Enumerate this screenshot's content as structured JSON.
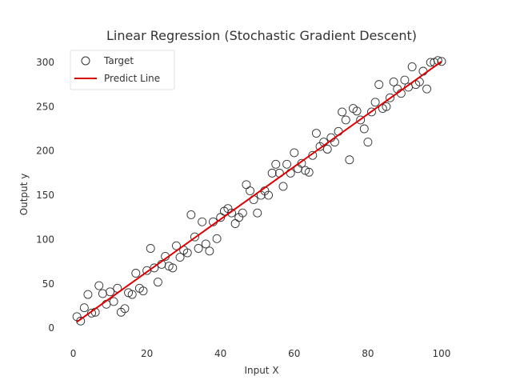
{
  "chart_data": {
    "type": "scatter",
    "title": "Linear Regression (Stochastic Gradient Descent)",
    "xlabel": "Input X",
    "ylabel": "Output y",
    "xlim": [
      -2.5,
      105
    ],
    "ylim": [
      -17,
      318
    ],
    "xticks": [
      0,
      20,
      40,
      60,
      80,
      100
    ],
    "yticks": [
      0,
      50,
      100,
      150,
      200,
      250,
      300
    ],
    "grid": false,
    "legend_position": "top-left",
    "series": [
      {
        "name": "Target",
        "kind": "scatter",
        "marker": "hollow-circle",
        "color": "#333333",
        "x": [
          1,
          2,
          3,
          4,
          5,
          6,
          7,
          8,
          9,
          10,
          11,
          12,
          13,
          14,
          15,
          16,
          17,
          18,
          19,
          20,
          21,
          22,
          23,
          24,
          25,
          26,
          27,
          28,
          29,
          30,
          31,
          32,
          33,
          34,
          35,
          36,
          37,
          38,
          39,
          40,
          41,
          42,
          43,
          44,
          45,
          46,
          47,
          48,
          49,
          50,
          51,
          52,
          53,
          54,
          55,
          56,
          57,
          58,
          59,
          60,
          61,
          62,
          63,
          64,
          65,
          66,
          67,
          68,
          69,
          70,
          71,
          72,
          73,
          74,
          75,
          76,
          77,
          78,
          79,
          80,
          81,
          82,
          83,
          84,
          85,
          86,
          87,
          88,
          89,
          90,
          91,
          92,
          93,
          94,
          95,
          96,
          97,
          98,
          99,
          100
        ],
        "y": [
          13,
          8,
          23,
          38,
          17,
          18,
          48,
          39,
          27,
          41,
          30,
          45,
          18,
          22,
          40,
          38,
          62,
          45,
          42,
          65,
          90,
          68,
          52,
          72,
          81,
          70,
          68,
          93,
          80,
          88,
          85,
          128,
          103,
          90,
          120,
          95,
          87,
          120,
          101,
          125,
          132,
          135,
          130,
          118,
          125,
          130,
          162,
          155,
          145,
          130,
          150,
          155,
          150,
          175,
          185,
          175,
          160,
          185,
          175,
          198,
          180,
          186,
          178,
          176,
          195,
          220,
          205,
          210,
          202,
          215,
          210,
          222,
          244,
          235,
          190,
          248,
          245,
          235,
          225,
          210,
          244,
          255,
          275,
          248,
          250,
          260,
          278,
          270,
          265,
          280,
          272,
          295,
          275,
          278,
          290,
          270,
          300,
          300,
          302,
          301
        ]
      },
      {
        "name": "Predict Line",
        "kind": "line",
        "color": "#dd0000",
        "x": [
          1,
          100
        ],
        "y": [
          7,
          301
        ]
      }
    ]
  }
}
